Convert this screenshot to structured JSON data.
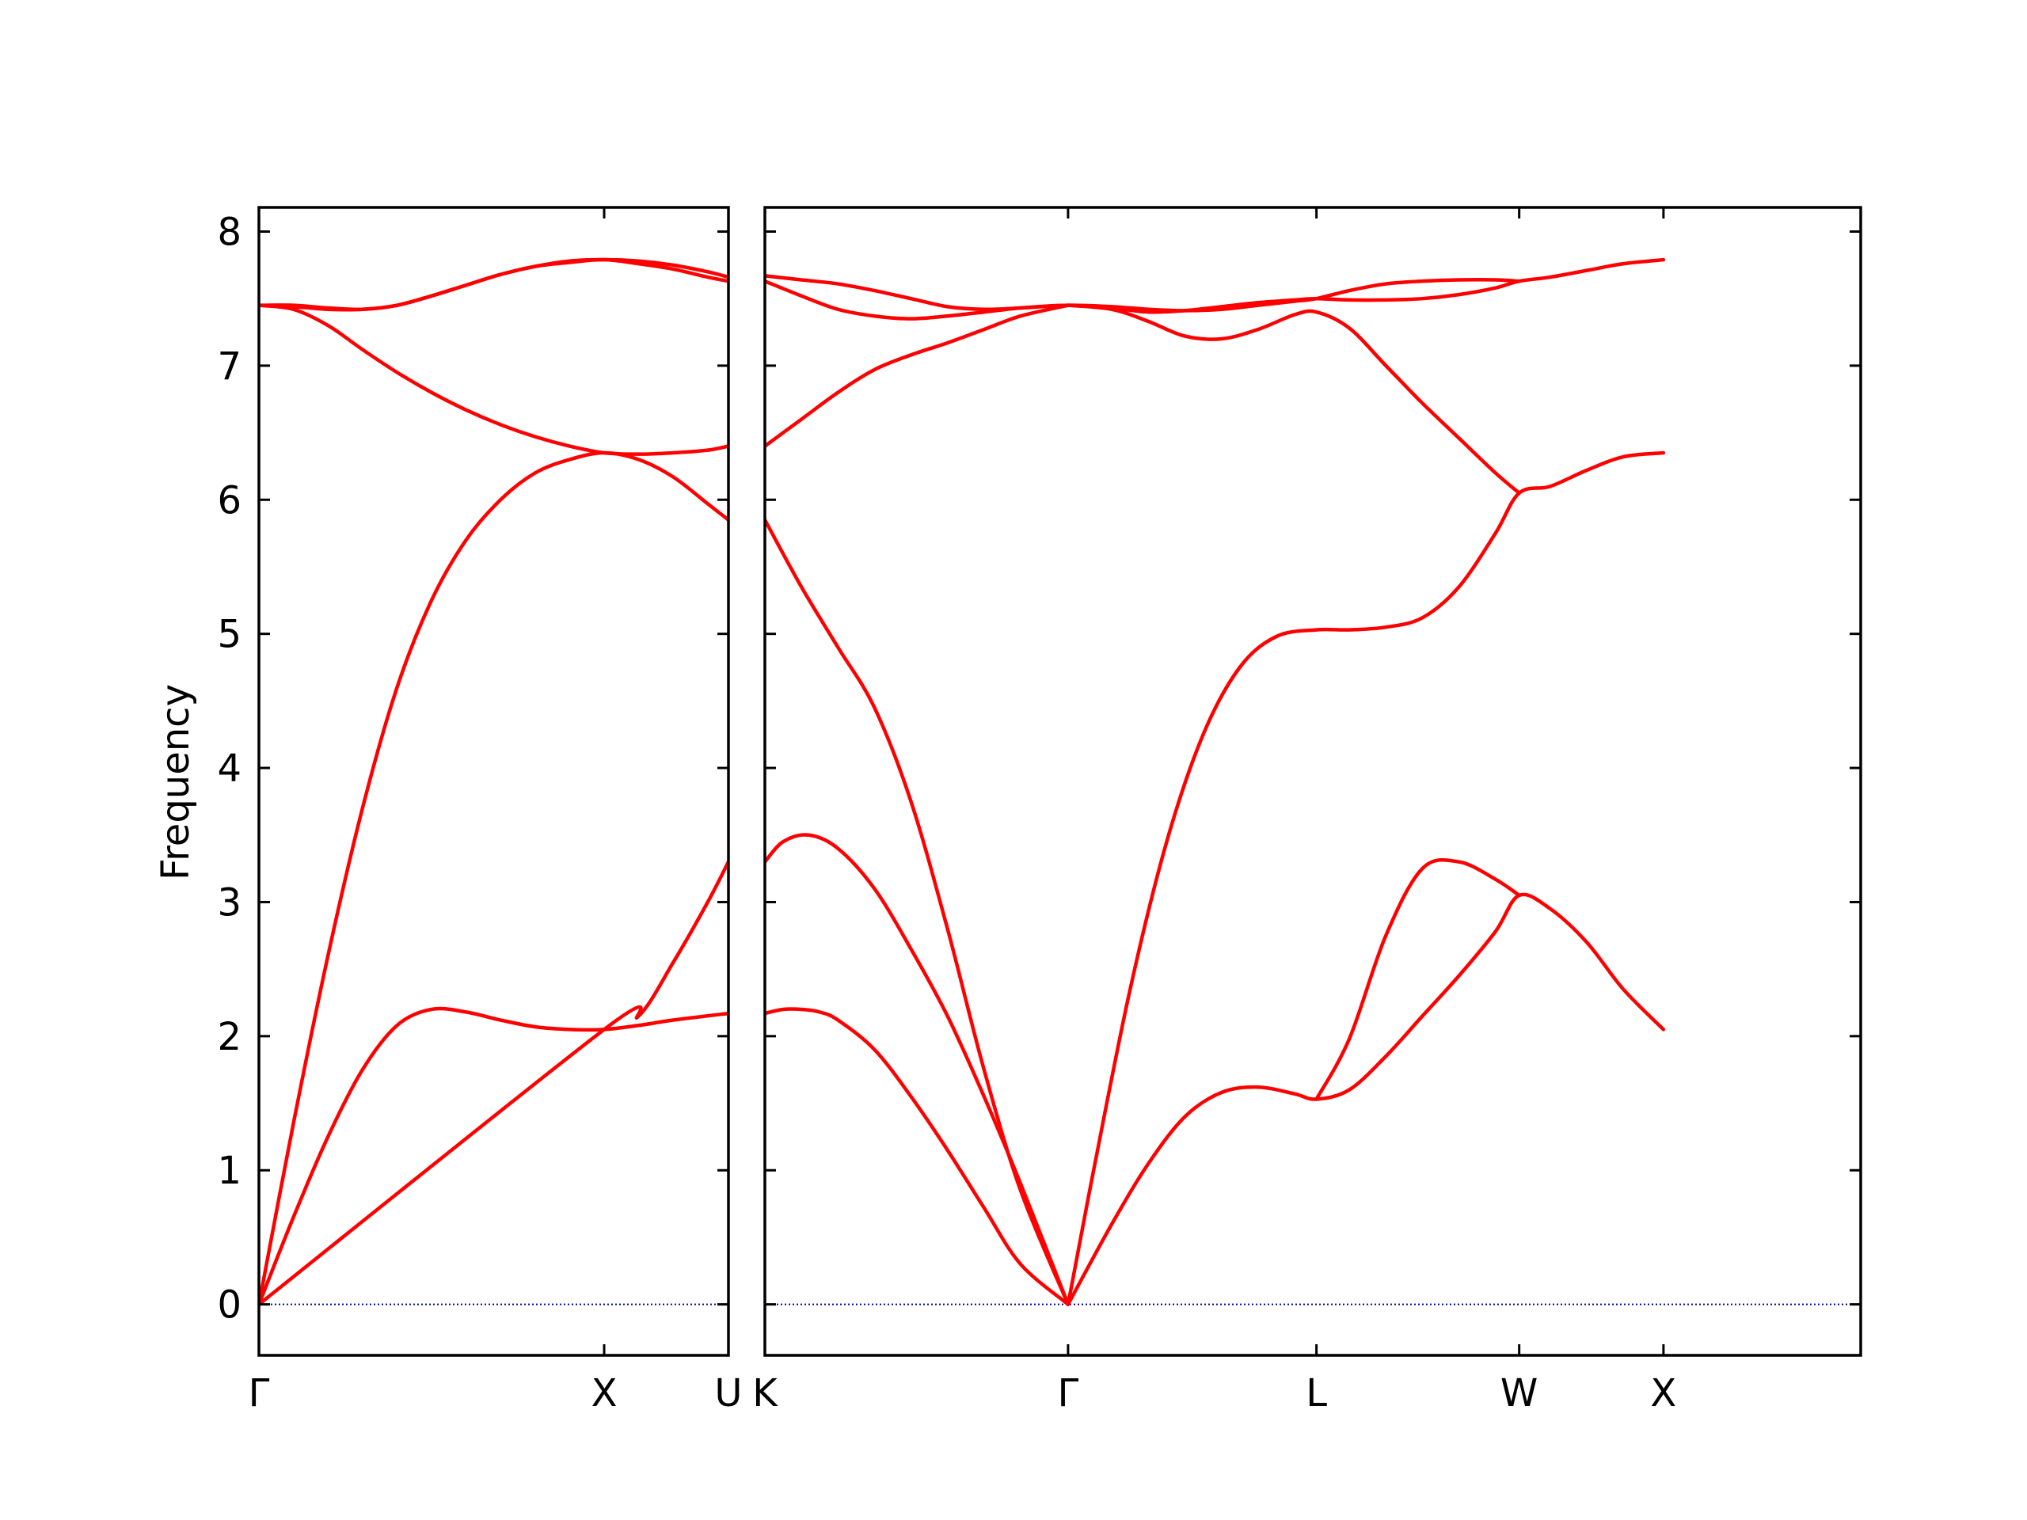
{
  "chart_data": {
    "type": "line",
    "title": "",
    "ylabel": "Frequency",
    "ylim": [
      -0.38,
      8.18
    ],
    "yticks": [
      0,
      1,
      2,
      3,
      4,
      5,
      6,
      7,
      8
    ],
    "grid": false,
    "colors": {
      "bands": "#ff0000",
      "zero_line": "#0000aa",
      "frame": "#000000"
    },
    "panels": [
      {
        "name": "left",
        "xlim": [
          0,
          1.36
        ],
        "xticks": [
          {
            "x": 0.0,
            "label": "Γ"
          },
          {
            "x": 1.0,
            "label": "X"
          },
          {
            "x": 1.36,
            "label": "U"
          }
        ],
        "bands": [
          {
            "x": [
              0,
              0.1,
              0.2,
              0.3,
              0.4,
              0.5,
              0.6,
              0.7,
              0.8,
              0.9,
              1.0,
              1.1,
              1.2,
              1.36
            ],
            "y": [
              0,
              0.65,
              1.25,
              1.75,
              2.08,
              2.2,
              2.18,
              2.12,
              2.07,
              2.05,
              2.05,
              2.08,
              2.12,
              2.17
            ]
          },
          {
            "x": [
              0,
              1.0,
              1.1,
              1.2,
              1.3,
              1.36
            ],
            "y": [
              0,
              2.05,
              2.15,
              2.55,
              3.0,
              3.3
            ]
          },
          {
            "x": [
              0,
              0.1,
              0.2,
              0.3,
              0.4,
              0.5,
              0.6,
              0.7,
              0.8,
              0.9,
              1.0,
              1.1,
              1.2,
              1.3,
              1.36
            ],
            "y": [
              0,
              1.35,
              2.6,
              3.7,
              4.6,
              5.25,
              5.7,
              6.0,
              6.2,
              6.3,
              6.35,
              6.3,
              6.17,
              5.97,
              5.85
            ]
          },
          {
            "x": [
              0,
              0.1,
              0.2,
              0.3,
              0.4,
              0.5,
              0.6,
              0.7,
              0.8,
              0.9,
              1.0,
              1.1,
              1.2,
              1.3,
              1.36
            ],
            "y": [
              7.45,
              7.42,
              7.3,
              7.12,
              6.95,
              6.8,
              6.67,
              6.56,
              6.47,
              6.4,
              6.35,
              6.34,
              6.35,
              6.37,
              6.4
            ]
          },
          {
            "x": [
              0,
              0.1,
              0.2,
              0.3,
              0.4,
              0.5,
              0.6,
              0.7,
              0.8,
              0.9,
              1.0,
              1.1,
              1.2,
              1.3,
              1.36
            ],
            "y": [
              7.45,
              7.44,
              7.42,
              7.42,
              7.45,
              7.52,
              7.6,
              7.68,
              7.74,
              7.78,
              7.79,
              7.78,
              7.75,
              7.7,
              7.66
            ]
          },
          {
            "x": [
              0,
              0.1,
              0.2,
              0.3,
              0.4,
              0.5,
              0.6,
              0.7,
              0.8,
              0.9,
              1.0,
              1.1,
              1.2,
              1.3,
              1.36
            ],
            "y": [
              7.45,
              7.45,
              7.43,
              7.42,
              7.45,
              7.52,
              7.6,
              7.68,
              7.74,
              7.77,
              7.79,
              7.76,
              7.72,
              7.66,
              7.63
            ]
          }
        ]
      },
      {
        "name": "right",
        "xlim": [
          0,
          3.0
        ],
        "xticks": [
          {
            "x": 0.0,
            "label": "K"
          },
          {
            "x": 0.83,
            "label": "Γ"
          },
          {
            "x": 1.51,
            "label": "L"
          },
          {
            "x": 2.065,
            "label": "W"
          },
          {
            "x": 2.46,
            "label": "X"
          }
        ],
        "bands": [
          {
            "x": [
              0,
              0.05,
              0.1,
              0.15,
              0.2,
              0.3,
              0.4,
              0.5,
              0.6,
              0.7,
              0.83
            ],
            "y": [
              2.17,
              2.2,
              2.2,
              2.18,
              2.12,
              1.9,
              1.55,
              1.15,
              0.72,
              0.3,
              0
            ]
          },
          {
            "x": [
              0,
              0.05,
              0.12,
              0.2,
              0.3,
              0.4,
              0.5,
              0.6,
              0.7,
              0.83
            ],
            "y": [
              3.3,
              3.45,
              3.5,
              3.4,
              3.1,
              2.65,
              2.15,
              1.55,
              0.9,
              0
            ]
          },
          {
            "x": [
              0,
              0.1,
              0.2,
              0.3,
              0.4,
              0.5,
              0.6,
              0.7,
              0.83
            ],
            "y": [
              5.85,
              5.35,
              4.9,
              4.45,
              3.75,
              2.8,
              1.75,
              0.85,
              0
            ]
          },
          {
            "x": [
              0.83,
              0.95,
              1.05,
              1.15,
              1.25,
              1.35,
              1.45,
              1.51,
              1.6,
              1.7,
              1.8,
              1.9,
              2.0,
              2.065,
              2.15,
              2.25,
              2.35,
              2.46
            ],
            "y": [
              0,
              0.6,
              1.05,
              1.4,
              1.58,
              1.62,
              1.57,
              1.53,
              1.6,
              1.85,
              2.15,
              2.45,
              2.78,
              3.05,
              2.95,
              2.7,
              2.35,
              2.05
            ]
          },
          {
            "x": [
              1.51,
              1.6,
              1.7,
              1.8,
              1.9,
              2.0,
              2.065
            ],
            "y": [
              1.53,
              1.98,
              2.75,
              3.25,
              3.3,
              3.17,
              3.05
            ]
          },
          {
            "x": [
              0.83,
              0.9,
              1.0,
              1.1,
              1.2,
              1.3,
              1.4,
              1.51,
              1.6,
              1.7,
              1.8,
              1.9,
              2.0,
              2.065,
              2.15,
              2.25,
              2.35,
              2.46
            ],
            "y": [
              0,
              1.0,
              2.35,
              3.45,
              4.25,
              4.75,
              4.98,
              5.03,
              5.03,
              5.05,
              5.12,
              5.35,
              5.75,
              6.05,
              6.1,
              6.22,
              6.32,
              6.35
            ]
          },
          {
            "x": [
              0,
              0.1,
              0.2,
              0.3,
              0.4,
              0.5,
              0.6,
              0.7,
              0.83
            ],
            "y": [
              6.4,
              6.6,
              6.8,
              6.97,
              7.08,
              7.17,
              7.27,
              7.37,
              7.45
            ]
          },
          {
            "x": [
              0.83,
              0.95,
              1.05,
              1.15,
              1.25,
              1.35,
              1.45,
              1.51,
              1.6,
              1.7,
              1.8,
              1.9,
              2.0,
              2.065
            ],
            "y": [
              7.45,
              7.42,
              7.33,
              7.22,
              7.2,
              7.27,
              7.38,
              7.4,
              7.28,
              7.0,
              6.72,
              6.46,
              6.2,
              6.05
            ]
          },
          {
            "x": [
              0,
              0.1,
              0.2,
              0.3,
              0.4,
              0.5,
              0.6,
              0.7,
              0.83,
              0.95,
              1.05,
              1.15,
              1.25,
              1.35,
              1.45,
              1.51,
              1.6,
              1.7,
              1.8,
              1.9,
              2.0,
              2.065,
              2.15,
              2.25,
              2.35,
              2.46
            ],
            "y": [
              7.63,
              7.52,
              7.42,
              7.37,
              7.35,
              7.37,
              7.4,
              7.43,
              7.45,
              7.43,
              7.4,
              7.41,
              7.44,
              7.47,
              7.49,
              7.5,
              7.49,
              7.49,
              7.5,
              7.53,
              7.58,
              7.63,
              7.66,
              7.71,
              7.76,
              7.79
            ]
          },
          {
            "x": [
              0,
              0.1,
              0.2,
              0.3,
              0.4,
              0.5,
              0.6,
              0.7,
              0.83,
              0.95,
              1.05,
              1.15,
              1.25,
              1.35,
              1.45,
              1.51,
              1.6,
              1.7,
              1.8,
              1.9,
              2.0,
              2.065
            ],
            "y": [
              7.67,
              7.64,
              7.61,
              7.56,
              7.5,
              7.44,
              7.42,
              7.43,
              7.45,
              7.44,
              7.42,
              7.41,
              7.42,
              7.45,
              7.48,
              7.5,
              7.56,
              7.61,
              7.63,
              7.64,
              7.64,
              7.63
            ]
          }
        ]
      }
    ]
  }
}
